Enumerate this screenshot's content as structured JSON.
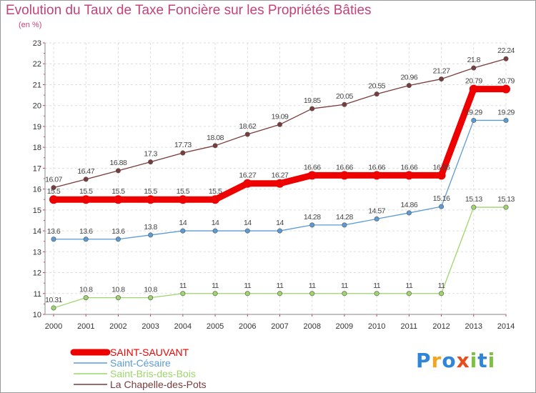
{
  "title": "Evolution du Taux de Taxe Foncière sur les Propriétés Bâties",
  "subtitle": "(en %)",
  "logo": {
    "text": "Proxiti",
    "letters": [
      {
        "ch": "P",
        "color": "#2f86d6"
      },
      {
        "ch": "r",
        "color": "#f2a51f"
      },
      {
        "ch": "o",
        "color": "#2f86d6"
      },
      {
        "ch": "x",
        "color": "#e84e1b"
      },
      {
        "ch": "i",
        "color": "#7cc142"
      },
      {
        "ch": "t",
        "color": "#2f86d6"
      },
      {
        "ch": "i",
        "color": "#7cc142"
      }
    ]
  },
  "chart_data": {
    "type": "line",
    "title": "Evolution du Taux de Taxe Foncière sur les Propriétés Bâties",
    "ylabel": "(en %)",
    "xlabel": "",
    "x": [
      "2000",
      "2001",
      "2002",
      "2003",
      "2004",
      "2005",
      "2006",
      "2007",
      "2008",
      "2009",
      "2010",
      "2011",
      "2012",
      "2013",
      "2014"
    ],
    "ylim": [
      10,
      23
    ],
    "yticks": [
      "10",
      "11",
      "12",
      "13",
      "14",
      "15",
      "16",
      "17",
      "18",
      "19",
      "20",
      "21",
      "22",
      "23"
    ],
    "legend_position": "bottom-left",
    "series": [
      {
        "name": "SAINT-SAUVANT",
        "color": "#ee0000",
        "style": "thick",
        "values": [
          15.5,
          15.5,
          15.5,
          15.5,
          15.5,
          15.5,
          16.27,
          16.27,
          16.66,
          16.66,
          16.66,
          16.66,
          16.66,
          20.79,
          20.79
        ],
        "labels": [
          "15.5",
          "15.5",
          "15.5",
          "15.5",
          "15.5",
          "15.5",
          "16.27",
          "16.27",
          "16.66",
          "16.66",
          "16.66",
          "16.66",
          "16.66",
          "20.79",
          "20.79"
        ]
      },
      {
        "name": "Saint-Césaire",
        "color": "#5b9bd5",
        "style": "thin",
        "values": [
          13.6,
          13.6,
          13.6,
          13.8,
          14,
          14,
          14,
          14,
          14.28,
          14.28,
          14.57,
          14.86,
          15.16,
          19.29,
          19.29
        ],
        "labels": [
          "13.6",
          "13.6",
          "13.6",
          "13.8",
          "14",
          "14",
          "14",
          "14",
          "14.28",
          "14.28",
          "14.57",
          "14.86",
          "15.16",
          "19.29",
          "19.29"
        ]
      },
      {
        "name": "Saint-Bris-des-Bois",
        "color": "#9ed56b",
        "style": "thin",
        "values": [
          10.31,
          10.8,
          10.8,
          10.8,
          11,
          11,
          11,
          11,
          11,
          11,
          11,
          11,
          11,
          15.13,
          15.13
        ],
        "labels": [
          "10.31",
          "10.8",
          "10.8",
          "10.8",
          "11",
          "11",
          "11",
          "11",
          "11",
          "11",
          "11",
          "11",
          "11",
          "15.13",
          "15.13"
        ]
      },
      {
        "name": "La Chapelle-des-Pots",
        "color": "#7a3b3b",
        "style": "thin",
        "values": [
          16.07,
          16.47,
          16.88,
          17.3,
          17.73,
          18.08,
          18.62,
          19.09,
          19.85,
          20.05,
          20.55,
          20.96,
          21.27,
          21.8,
          22.24
        ],
        "labels": [
          "16.07",
          "16.47",
          "16.88",
          "17.3",
          "17.73",
          "18.08",
          "18.62",
          "19.09",
          "19.85",
          "20.05",
          "20.55",
          "20.96",
          "21.27",
          "21.8",
          "22.24"
        ]
      }
    ]
  }
}
